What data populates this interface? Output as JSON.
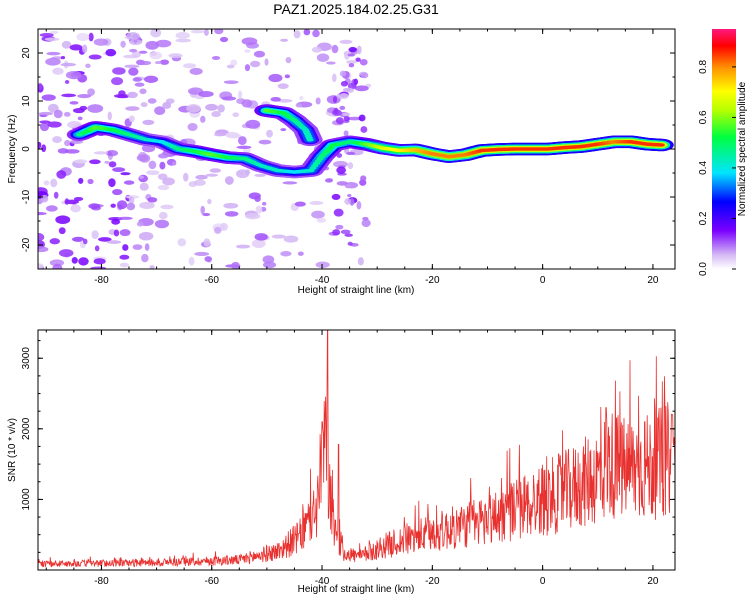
{
  "title": "PAZ1.2025.184.02.25.G31",
  "chart_data": [
    {
      "type": "heatmap",
      "xlabel": "Height of straight line (km)",
      "ylabel": "Frequency (Hz)",
      "xlim": [
        -91.5,
        24
      ],
      "ylim": [
        -25,
        25
      ],
      "xticks": [
        -80,
        -60,
        -40,
        -20,
        0,
        20
      ],
      "yticks": [
        -20,
        -10,
        0,
        10,
        20
      ],
      "colorbar": {
        "label": "Normalized spectral amplitude",
        "range": [
          0,
          0.95
        ],
        "ticks": [
          0.0,
          0.2,
          0.4,
          0.6,
          0.8
        ]
      },
      "ridge": [
        {
          "x": -84,
          "y": 3.0,
          "a": 0.45
        },
        {
          "x": -81,
          "y": 4.5,
          "a": 0.55
        },
        {
          "x": -78,
          "y": 4.0,
          "a": 0.5
        },
        {
          "x": -75,
          "y": 3.0,
          "a": 0.45
        },
        {
          "x": -72,
          "y": 2.0,
          "a": 0.4
        },
        {
          "x": -69,
          "y": 1.5,
          "a": 0.35
        },
        {
          "x": -66,
          "y": 0.0,
          "a": 0.45
        },
        {
          "x": -63,
          "y": -0.5,
          "a": 0.5
        },
        {
          "x": -60,
          "y": -1.2,
          "a": 0.55
        },
        {
          "x": -57,
          "y": -1.8,
          "a": 0.5
        },
        {
          "x": -54,
          "y": -2.0,
          "a": 0.45
        },
        {
          "x": -51,
          "y": -3.5,
          "a": 0.4
        },
        {
          "x": -48,
          "y": -4.5,
          "a": 0.4
        },
        {
          "x": -45,
          "y": -4.8,
          "a": 0.35
        },
        {
          "x": -42,
          "y": -4.5,
          "a": 0.4
        },
        {
          "x": -40,
          "y": -1.5,
          "a": 0.45
        },
        {
          "x": -38,
          "y": 0.8,
          "a": 0.5
        },
        {
          "x": -35,
          "y": 1.5,
          "a": 0.45
        },
        {
          "x": -32,
          "y": 1.0,
          "a": 0.55
        },
        {
          "x": -29,
          "y": 0.2,
          "a": 0.65
        },
        {
          "x": -26,
          "y": -0.3,
          "a": 0.7
        },
        {
          "x": -23,
          "y": -0.2,
          "a": 0.75
        },
        {
          "x": -20,
          "y": -1.0,
          "a": 0.8
        },
        {
          "x": -17,
          "y": -1.6,
          "a": 0.8
        },
        {
          "x": -14,
          "y": -1.2,
          "a": 0.8
        },
        {
          "x": -11,
          "y": -0.3,
          "a": 0.85
        },
        {
          "x": -8,
          "y": -0.1,
          "a": 0.85
        },
        {
          "x": -5,
          "y": 0.0,
          "a": 0.85
        },
        {
          "x": -2,
          "y": 0.0,
          "a": 0.85
        },
        {
          "x": 1,
          "y": 0.0,
          "a": 0.85
        },
        {
          "x": 4,
          "y": 0.3,
          "a": 0.85
        },
        {
          "x": 7,
          "y": 0.5,
          "a": 0.85
        },
        {
          "x": 10,
          "y": 1.0,
          "a": 0.85
        },
        {
          "x": 13,
          "y": 1.5,
          "a": 0.8
        },
        {
          "x": 16,
          "y": 1.5,
          "a": 0.85
        },
        {
          "x": 19,
          "y": 1.0,
          "a": 0.85
        },
        {
          "x": 22,
          "y": 0.8,
          "a": 0.85
        }
      ],
      "branch": [
        {
          "x": -50,
          "y": 8.0,
          "a": 0.55
        },
        {
          "x": -47,
          "y": 7.5,
          "a": 0.5
        },
        {
          "x": -45,
          "y": 6.0,
          "a": 0.45
        },
        {
          "x": -43,
          "y": 4.0,
          "a": 0.4
        },
        {
          "x": -42,
          "y": 1.5,
          "a": 0.4
        }
      ]
    },
    {
      "type": "line",
      "xlabel": "Height of straight line (km)",
      "ylabel": "SNR (10 * v/v)",
      "xlim": [
        -91.5,
        24
      ],
      "ylim": [
        0,
        3400
      ],
      "xticks": [
        -80,
        -60,
        -40,
        -20,
        0,
        20
      ],
      "yticks": [
        1000,
        2000,
        3000
      ],
      "color": "#e8302e",
      "envelope_x": [
        -91.5,
        -70,
        -55,
        -48,
        -44,
        -41,
        -39.5,
        -38,
        -36,
        -33,
        -29,
        -25,
        -20,
        -15,
        -10,
        -5,
        0,
        5,
        10,
        12,
        15,
        20,
        24
      ],
      "envelope_y": [
        90,
        110,
        150,
        280,
        500,
        900,
        1900,
        700,
        250,
        200,
        350,
        450,
        550,
        650,
        750,
        900,
        1050,
        1200,
        1400,
        1600,
        1500,
        1550,
        1700
      ],
      "peaks": [
        {
          "x": -39.0,
          "y": 3400
        },
        {
          "x": -40.0,
          "y": 2100
        },
        {
          "x": -37.0,
          "y": 1780
        },
        {
          "x": 11.5,
          "y": 2300
        },
        {
          "x": 18.5,
          "y": 2100
        },
        {
          "x": 23.5,
          "y": 2200
        }
      ]
    }
  ]
}
